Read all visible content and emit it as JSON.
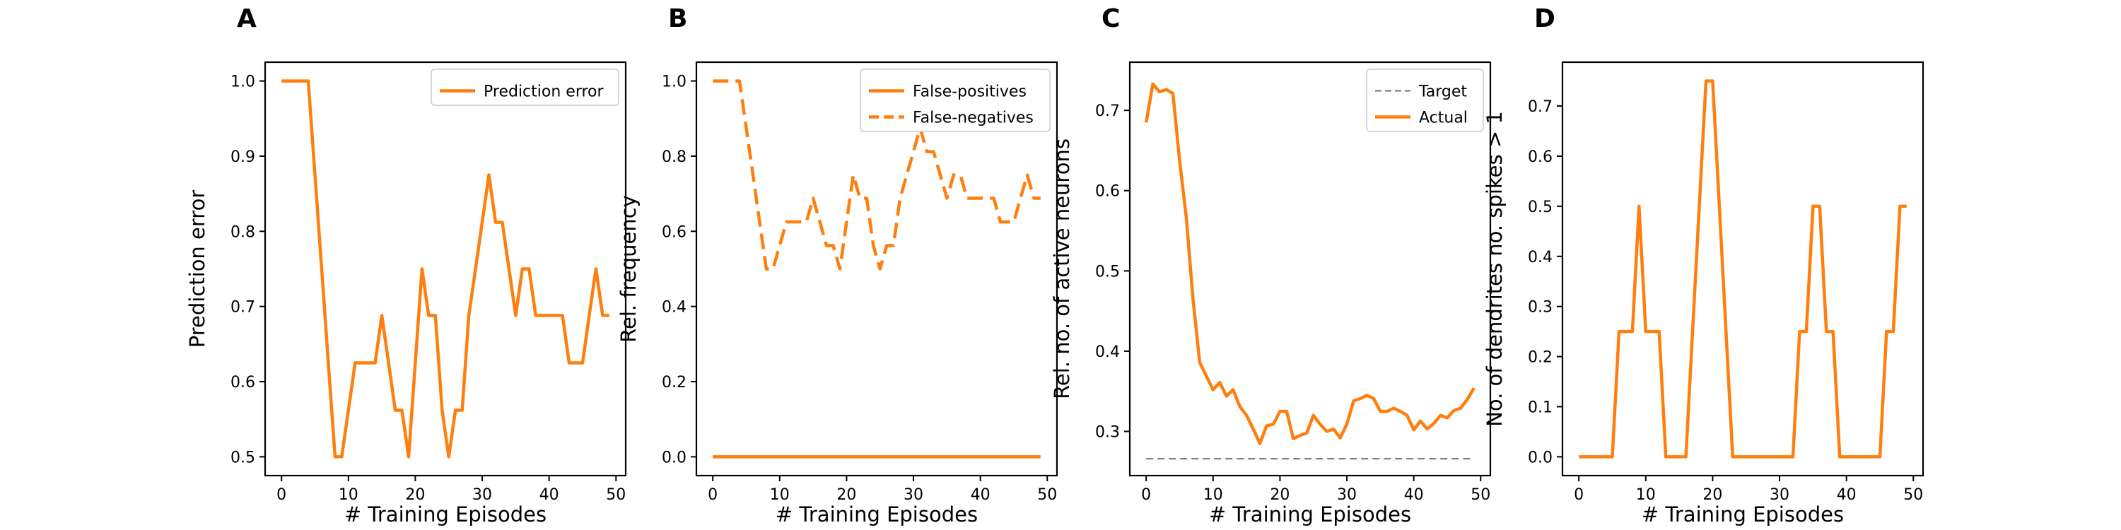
{
  "colors": {
    "orange": "#ff7f0e",
    "target_gray": "#7f7f7f"
  },
  "chart_data": [
    {
      "panel": "A",
      "type": "line",
      "xlabel": "# Training Episodes",
      "ylabel": "Prediction error",
      "xlim": [
        -2.45,
        51.45
      ],
      "ylim": [
        0.475,
        1.025
      ],
      "xticks": [
        0,
        10,
        20,
        30,
        40,
        50
      ],
      "yticks": [
        0.5,
        0.6,
        0.7,
        0.8,
        0.9,
        1.0
      ],
      "ytick_labels": [
        "0.5",
        "0.6",
        "0.7",
        "0.8",
        "0.9",
        "1.0"
      ],
      "legend_position": "top-right",
      "series": [
        {
          "name": "Prediction error",
          "style": "solid",
          "color": "#ff7f0e",
          "x": [
            0,
            1,
            2,
            3,
            4,
            5,
            6,
            7,
            8,
            9,
            10,
            11,
            12,
            13,
            14,
            15,
            16,
            17,
            18,
            19,
            20,
            21,
            22,
            23,
            24,
            25,
            26,
            27,
            28,
            29,
            30,
            31,
            32,
            33,
            34,
            35,
            36,
            37,
            38,
            39,
            40,
            41,
            42,
            43,
            44,
            45,
            46,
            47,
            48,
            49
          ],
          "values": [
            1.0,
            1.0,
            1.0,
            1.0,
            1.0,
            0.875,
            0.75,
            0.625,
            0.5,
            0.5,
            0.562,
            0.625,
            0.625,
            0.625,
            0.625,
            0.688,
            0.625,
            0.562,
            0.562,
            0.5,
            0.625,
            0.75,
            0.688,
            0.688,
            0.562,
            0.5,
            0.562,
            0.562,
            0.688,
            0.75,
            0.812,
            0.875,
            0.812,
            0.812,
            0.75,
            0.688,
            0.75,
            0.75,
            0.688,
            0.688,
            0.688,
            0.688,
            0.688,
            0.625,
            0.625,
            0.625,
            0.688,
            0.75,
            0.688,
            0.688
          ]
        }
      ]
    },
    {
      "panel": "B",
      "type": "line",
      "xlabel": "# Training Episodes",
      "ylabel": "Rel. frequency",
      "xlim": [
        -2.45,
        51.45
      ],
      "ylim": [
        -0.05,
        1.05
      ],
      "xticks": [
        0,
        10,
        20,
        30,
        40,
        50
      ],
      "yticks": [
        0.0,
        0.2,
        0.4,
        0.6,
        0.8,
        1.0
      ],
      "ytick_labels": [
        "0.0",
        "0.2",
        "0.4",
        "0.6",
        "0.8",
        "1.0"
      ],
      "legend_position": "top-right",
      "series": [
        {
          "name": "False-positives",
          "style": "solid",
          "color": "#ff7f0e",
          "x": [
            0,
            1,
            2,
            3,
            4,
            5,
            6,
            7,
            8,
            9,
            10,
            11,
            12,
            13,
            14,
            15,
            16,
            17,
            18,
            19,
            20,
            21,
            22,
            23,
            24,
            25,
            26,
            27,
            28,
            29,
            30,
            31,
            32,
            33,
            34,
            35,
            36,
            37,
            38,
            39,
            40,
            41,
            42,
            43,
            44,
            45,
            46,
            47,
            48,
            49
          ],
          "values": [
            0,
            0,
            0,
            0,
            0,
            0,
            0,
            0,
            0,
            0,
            0,
            0,
            0,
            0,
            0,
            0,
            0,
            0,
            0,
            0,
            0,
            0,
            0,
            0,
            0,
            0,
            0,
            0,
            0,
            0,
            0,
            0,
            0,
            0,
            0,
            0,
            0,
            0,
            0,
            0,
            0,
            0,
            0,
            0,
            0,
            0,
            0,
            0,
            0,
            0
          ]
        },
        {
          "name": "False-negatives",
          "style": "dashed",
          "color": "#ff7f0e",
          "x": [
            0,
            1,
            2,
            3,
            4,
            5,
            6,
            7,
            8,
            9,
            10,
            11,
            12,
            13,
            14,
            15,
            16,
            17,
            18,
            19,
            20,
            21,
            22,
            23,
            24,
            25,
            26,
            27,
            28,
            29,
            30,
            31,
            32,
            33,
            34,
            35,
            36,
            37,
            38,
            39,
            40,
            41,
            42,
            43,
            44,
            45,
            46,
            47,
            48,
            49
          ],
          "values": [
            1.0,
            1.0,
            1.0,
            1.0,
            1.0,
            0.875,
            0.75,
            0.625,
            0.5,
            0.5,
            0.562,
            0.625,
            0.625,
            0.625,
            0.625,
            0.688,
            0.625,
            0.562,
            0.562,
            0.5,
            0.625,
            0.75,
            0.688,
            0.688,
            0.562,
            0.5,
            0.562,
            0.562,
            0.688,
            0.75,
            0.812,
            0.875,
            0.812,
            0.812,
            0.75,
            0.688,
            0.75,
            0.75,
            0.688,
            0.688,
            0.688,
            0.688,
            0.688,
            0.625,
            0.625,
            0.625,
            0.688,
            0.75,
            0.688,
            0.688
          ]
        }
      ]
    },
    {
      "panel": "C",
      "type": "line",
      "xlabel": "# Training Episodes",
      "ylabel": "Rel. no. of active neurons",
      "xlim": [
        -2.45,
        51.45
      ],
      "ylim": [
        0.245,
        0.76
      ],
      "xticks": [
        0,
        10,
        20,
        30,
        40,
        50
      ],
      "yticks": [
        0.3,
        0.4,
        0.5,
        0.6,
        0.7
      ],
      "ytick_labels": [
        "0.3",
        "0.4",
        "0.5",
        "0.6",
        "0.7"
      ],
      "legend_position": "top-right",
      "series": [
        {
          "name": "Target",
          "style": "dashed-thin",
          "color": "#7f7f7f",
          "x": [
            0,
            49
          ],
          "values": [
            0.266,
            0.266
          ]
        },
        {
          "name": "Actual",
          "style": "solid",
          "color": "#ff7f0e",
          "x": [
            0,
            1,
            2,
            3,
            4,
            5,
            6,
            7,
            8,
            9,
            10,
            11,
            12,
            13,
            14,
            15,
            16,
            17,
            18,
            19,
            20,
            21,
            22,
            23,
            24,
            25,
            26,
            27,
            28,
            29,
            30,
            31,
            32,
            33,
            34,
            35,
            36,
            37,
            38,
            39,
            40,
            41,
            42,
            43,
            44,
            45,
            46,
            47,
            48,
            49
          ],
          "values": [
            0.685,
            0.733,
            0.723,
            0.726,
            0.721,
            0.637,
            0.566,
            0.465,
            0.386,
            0.369,
            0.352,
            0.361,
            0.344,
            0.352,
            0.331,
            0.32,
            0.303,
            0.285,
            0.307,
            0.309,
            0.325,
            0.325,
            0.291,
            0.295,
            0.298,
            0.32,
            0.309,
            0.3,
            0.303,
            0.292,
            0.309,
            0.338,
            0.341,
            0.345,
            0.341,
            0.325,
            0.325,
            0.329,
            0.325,
            0.32,
            0.302,
            0.313,
            0.303,
            0.31,
            0.32,
            0.317,
            0.326,
            0.329,
            0.34,
            0.354
          ]
        }
      ]
    },
    {
      "panel": "D",
      "type": "line",
      "xlabel": "# Training Episodes",
      "ylabel": "No. of dendrites no. spikes > 1",
      "xlim": [
        -2.45,
        51.45
      ],
      "ylim": [
        -0.0375,
        0.7875
      ],
      "xticks": [
        0,
        10,
        20,
        30,
        40,
        50
      ],
      "yticks": [
        0.0,
        0.1,
        0.2,
        0.3,
        0.4,
        0.5,
        0.6,
        0.7
      ],
      "ytick_labels": [
        "0.0",
        "0.1",
        "0.2",
        "0.3",
        "0.4",
        "0.5",
        "0.6",
        "0.7"
      ],
      "legend_position": "none",
      "series": [
        {
          "name": "",
          "style": "solid",
          "color": "#ff7f0e",
          "x": [
            0,
            1,
            2,
            3,
            4,
            5,
            6,
            7,
            8,
            9,
            10,
            11,
            12,
            13,
            14,
            15,
            16,
            17,
            18,
            19,
            20,
            21,
            22,
            23,
            24,
            25,
            26,
            27,
            28,
            29,
            30,
            31,
            32,
            33,
            34,
            35,
            36,
            37,
            38,
            39,
            40,
            41,
            42,
            43,
            44,
            45,
            46,
            47,
            48,
            49
          ],
          "values": [
            0,
            0,
            0,
            0,
            0,
            0,
            0.25,
            0.25,
            0.25,
            0.5,
            0.25,
            0.25,
            0.25,
            0,
            0,
            0,
            0,
            0.25,
            0.5,
            0.75,
            0.75,
            0.5,
            0.25,
            0,
            0,
            0,
            0,
            0,
            0,
            0,
            0,
            0,
            0,
            0.25,
            0.25,
            0.5,
            0.5,
            0.25,
            0.25,
            0,
            0,
            0,
            0,
            0,
            0,
            0,
            0.25,
            0.25,
            0.5,
            0.5
          ]
        }
      ]
    }
  ]
}
